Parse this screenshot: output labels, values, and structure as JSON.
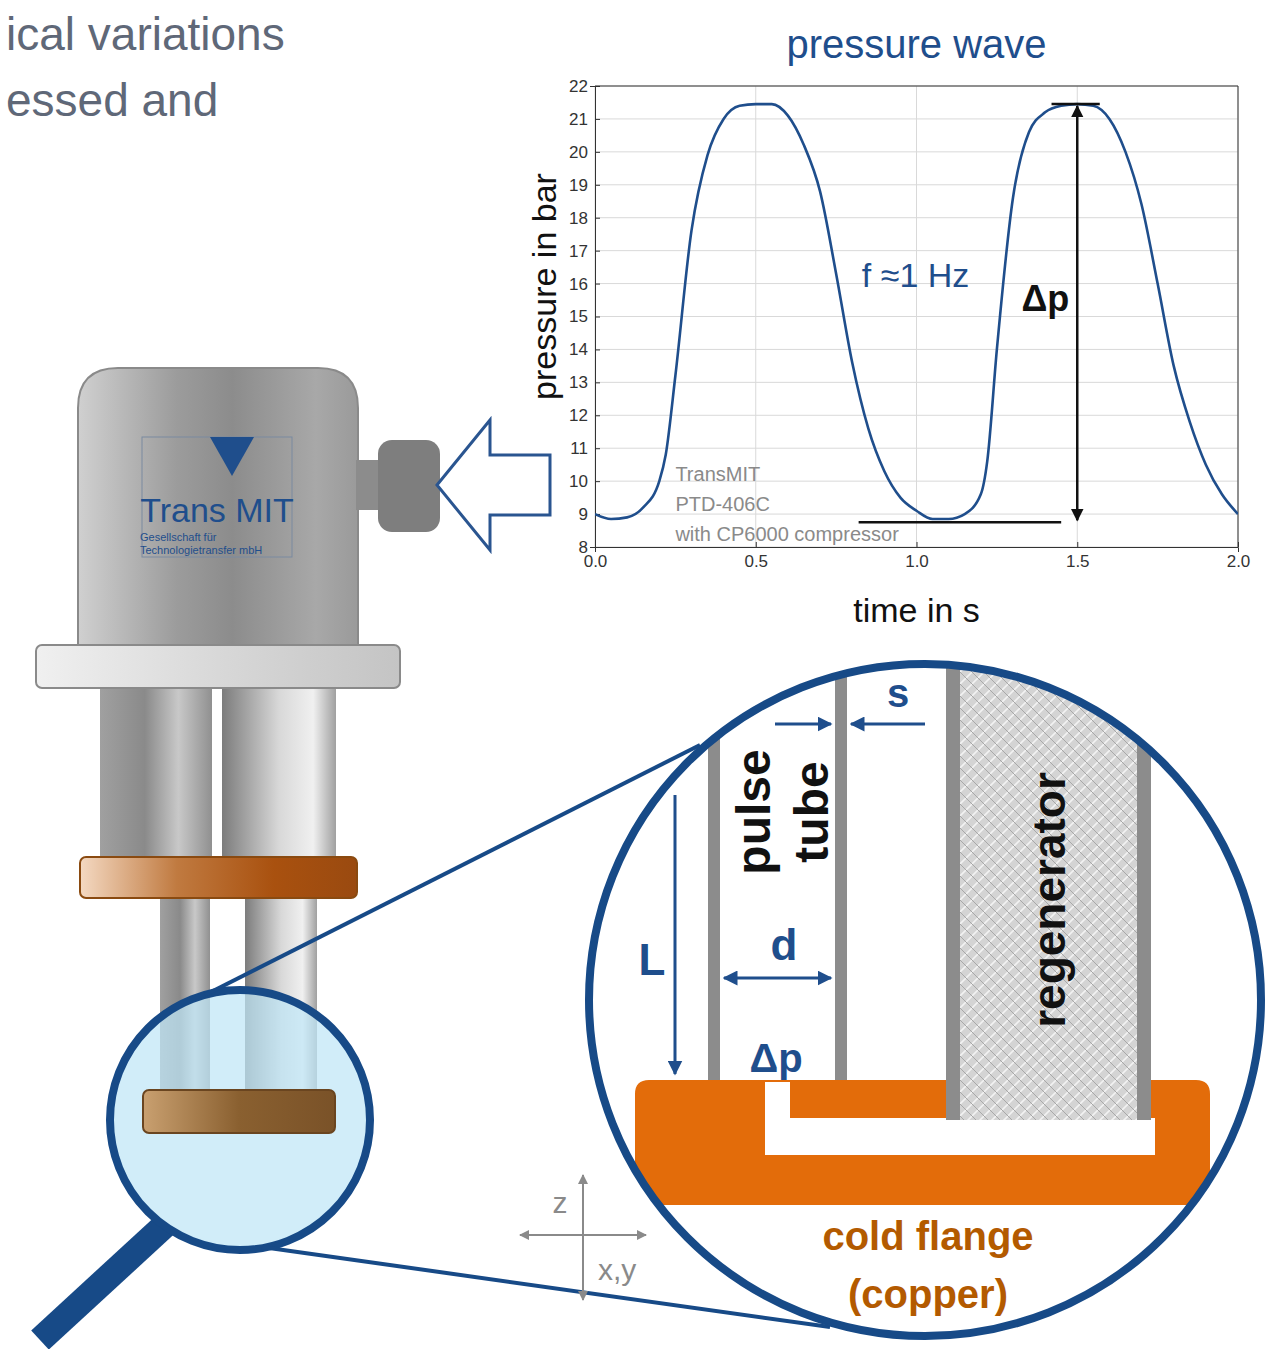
{
  "header": {
    "lines": [
      "ical variations",
      "essed and"
    ]
  },
  "chart_data": {
    "type": "line",
    "title": "pressure wave",
    "x_label": "time in s",
    "y_label": "pressure in bar",
    "x": [
      0,
      0.05,
      0.1,
      0.15,
      0.2,
      0.22,
      0.25,
      0.3,
      0.35,
      0.4,
      0.45,
      0.5,
      0.55,
      0.6,
      0.65,
      0.7,
      0.75,
      0.8,
      0.85,
      0.9,
      0.95,
      1.0,
      1.05,
      1.1,
      1.15,
      1.2,
      1.22,
      1.25,
      1.3,
      1.35,
      1.4,
      1.45,
      1.5,
      1.55,
      1.6,
      1.65,
      1.7,
      1.75,
      1.8,
      1.85,
      1.9,
      1.95,
      2.0
    ],
    "values": [
      9.0,
      8.85,
      8.9,
      9.2,
      10.0,
      10.8,
      13.2,
      17.6,
      19.9,
      21.0,
      21.4,
      21.45,
      21.45,
      21.1,
      20.2,
      18.8,
      16.3,
      13.6,
      11.6,
      10.3,
      9.5,
      9.1,
      8.85,
      8.85,
      9.0,
      9.6,
      10.6,
      14.0,
      18.6,
      20.6,
      21.2,
      21.4,
      21.45,
      21.4,
      21.0,
      20.0,
      18.4,
      16.0,
      13.5,
      11.8,
      10.5,
      9.6,
      9.0
    ],
    "color": "#1f4e8c",
    "xlim": [
      0,
      2
    ],
    "xticks": [
      {
        "value": 0,
        "label": "0.0"
      },
      {
        "value": 0.5,
        "label": "0.5"
      },
      {
        "value": 1,
        "label": "1.0"
      },
      {
        "value": 1.5,
        "label": "1.5"
      },
      {
        "value": 2,
        "label": "2.0"
      }
    ],
    "ylim": [
      8,
      22
    ],
    "yticks": [
      8,
      9,
      10,
      11,
      12,
      13,
      14,
      15,
      16,
      17,
      18,
      19,
      20,
      21,
      22
    ],
    "grid": true,
    "annotations": [
      {
        "text": "f ≈1 Hz",
        "x": 0.83,
        "y": 15.9
      },
      {
        "text": "Δp",
        "x": 1.5,
        "y_low": 8.75,
        "y_high": 21.45,
        "low_line": [
          0.82,
          1.45
        ],
        "high_line": [
          1.42,
          1.57
        ]
      },
      {
        "lines": [
          "TransMIT",
          "PTD-406C",
          "with CP6000 compressor"
        ],
        "x": 0.25,
        "y": 10.0
      }
    ]
  },
  "device": {
    "logo": "Trans MIT",
    "company": [
      "Gesellschaft für",
      "Technologietransfer mbH"
    ]
  },
  "zoom": {
    "pulse_tube": [
      "pulse",
      "tube"
    ],
    "regenerator": "regenerator",
    "labels": {
      "s": "s",
      "L": "L",
      "d": "d",
      "dp": "Δp"
    },
    "flange": [
      "cold flange",
      "(copper)"
    ],
    "axes": {
      "z": "z",
      "xy": "x,y"
    }
  }
}
